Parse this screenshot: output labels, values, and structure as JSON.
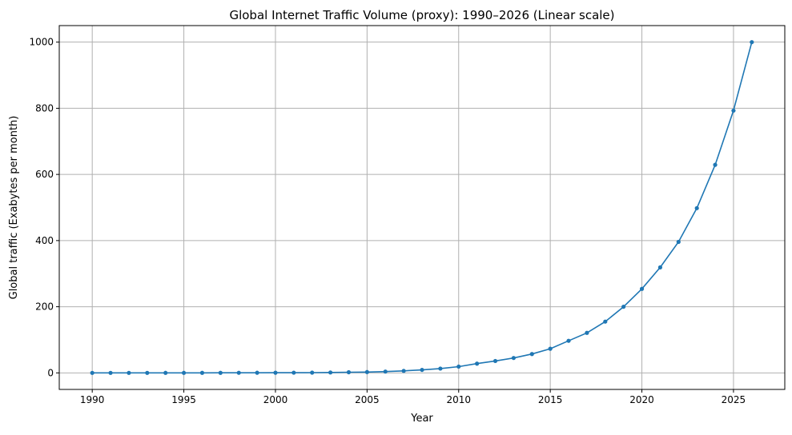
{
  "chart_data": {
    "type": "line",
    "title": "Global Internet Traffic Volume (proxy): 1990–2026 (Linear scale)",
    "xlabel": "Year",
    "ylabel": "Global traffic (Exabytes per month)",
    "xlim": [
      1988.2,
      2027.8
    ],
    "ylim": [
      -50,
      1050
    ],
    "xticks": [
      1990,
      1995,
      2000,
      2005,
      2010,
      2015,
      2020,
      2025
    ],
    "yticks": [
      0,
      200,
      400,
      600,
      800,
      1000
    ],
    "grid": true,
    "color": "#1f77b4",
    "marker": "circle",
    "x": [
      1990,
      1991,
      1992,
      1993,
      1994,
      1995,
      1996,
      1997,
      1998,
      1999,
      2000,
      2001,
      2002,
      2003,
      2004,
      2005,
      2006,
      2007,
      2008,
      2009,
      2010,
      2011,
      2012,
      2013,
      2014,
      2015,
      2016,
      2017,
      2018,
      2019,
      2020,
      2021,
      2022,
      2023,
      2024,
      2025,
      2026
    ],
    "y": [
      0.01,
      0.02,
      0.03,
      0.05,
      0.08,
      0.1,
      0.15,
      0.2,
      0.3,
      0.4,
      0.5,
      0.6,
      0.8,
      1.2,
      2,
      2.5,
      4,
      6,
      9,
      13,
      19,
      28,
      36,
      45,
      57,
      73,
      97,
      121,
      155,
      200,
      254,
      319,
      396,
      498,
      629,
      793,
      1000
    ]
  }
}
